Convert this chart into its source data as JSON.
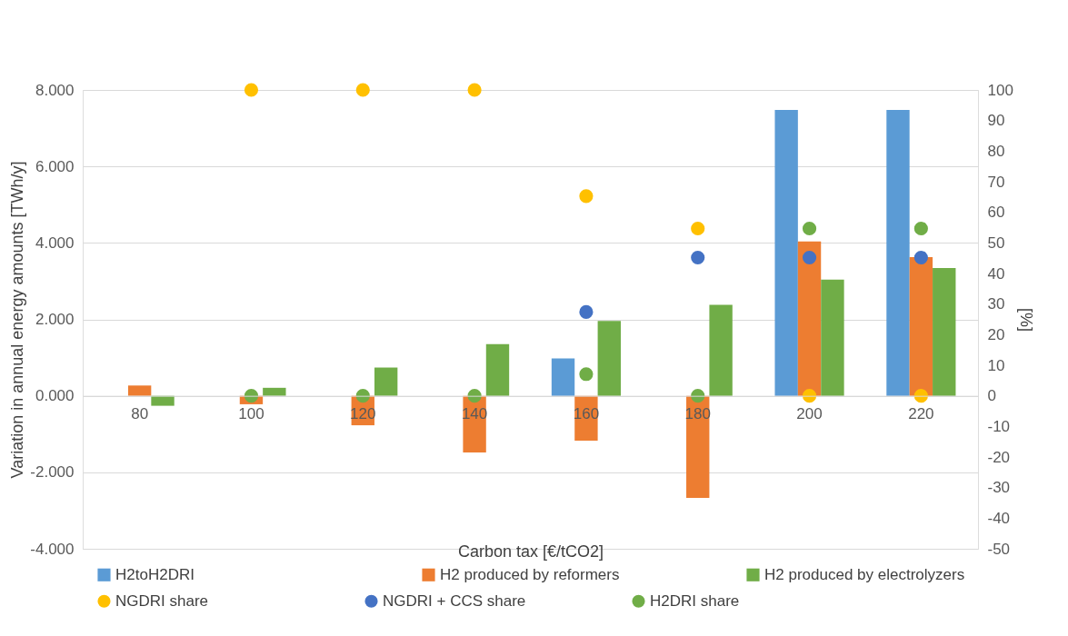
{
  "chart_data": {
    "type": "bar",
    "xlabel": "Carbon tax [€/tCO2]",
    "ylabel": "Variation in annual energy amounts [TWh/y]",
    "y2label": "[%]",
    "categories": [
      "80",
      "100",
      "120",
      "140",
      "160",
      "180",
      "200",
      "220"
    ],
    "series": [
      {
        "name": "H2toH2DRI",
        "color": "#5b9bd5",
        "values": [
          0,
          0,
          0,
          0,
          0.98,
          0,
          7.48,
          7.48
        ]
      },
      {
        "name": "H2 produced by reformers",
        "color": "#ed7d31",
        "values": [
          0.27,
          -0.22,
          -0.77,
          -1.48,
          -1.17,
          -2.67,
          4.04,
          3.63
        ]
      },
      {
        "name": "H2 produced by electrolyzers",
        "color": "#70ad47",
        "values": [
          -0.26,
          0.21,
          0.74,
          1.35,
          1.96,
          2.38,
          3.04,
          3.34
        ]
      },
      {
        "name": "NGDRI share",
        "type": "scatter",
        "axis": "y2",
        "color": "#ffc000",
        "values": [
          null,
          100,
          100,
          100,
          65.3,
          54.7,
          0,
          0
        ]
      },
      {
        "name": "NGDRI + CCS share",
        "type": "scatter",
        "axis": "y2",
        "color": "#4472c4",
        "values": [
          null,
          null,
          null,
          null,
          27.4,
          45.2,
          45.2,
          45.2
        ]
      },
      {
        "name": "H2DRI share",
        "type": "scatter",
        "axis": "y2",
        "color": "#70ad47",
        "values": [
          null,
          0,
          0,
          0,
          7.1,
          0,
          54.7,
          54.7
        ]
      }
    ],
    "ylim": [
      -4,
      8
    ],
    "yticks": [
      {
        "value": -4,
        "label": "-4.000"
      },
      {
        "value": -2,
        "label": "-2.000"
      },
      {
        "value": 0,
        "label": "0.000"
      },
      {
        "value": 2,
        "label": "2.000"
      },
      {
        "value": 4,
        "label": "4.000"
      },
      {
        "value": 6,
        "label": "6.000"
      },
      {
        "value": 8,
        "label": "8.000"
      }
    ],
    "y2lim": [
      -50,
      100
    ],
    "y2ticks": [
      -50,
      -40,
      -30,
      -20,
      -10,
      0,
      10,
      20,
      30,
      40,
      50,
      60,
      70,
      80,
      90,
      100
    ],
    "grid": "y",
    "legend": "bottom",
    "marker": "circle"
  }
}
